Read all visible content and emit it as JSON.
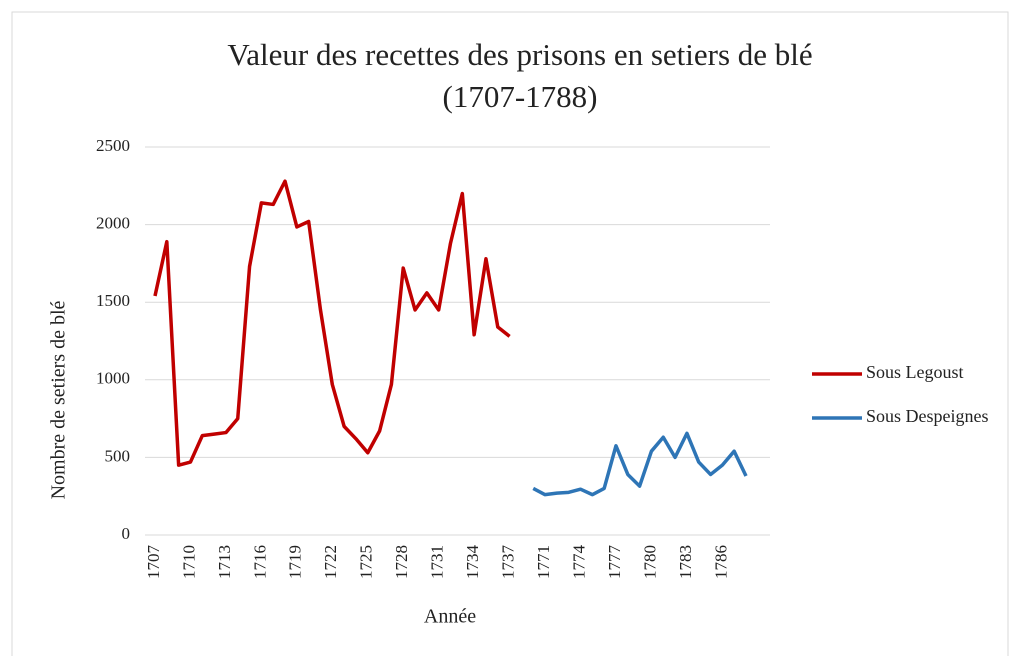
{
  "chart_data": {
    "type": "line",
    "title": [
      "Valeur des recettes des prisons en setiers de blé",
      "(1707-1788)"
    ],
    "x_label": "Année",
    "y_label": "Nombre de setiers de blé",
    "categories": [
      "1707",
      null,
      null,
      "1710",
      null,
      null,
      "1713",
      null,
      null,
      "1716",
      null,
      null,
      "1719",
      null,
      null,
      "1722",
      null,
      null,
      "1725",
      null,
      null,
      "1728",
      null,
      null,
      "1731",
      null,
      null,
      "1734",
      null,
      null,
      "1737",
      null,
      null,
      "1771",
      null,
      null,
      "1774",
      null,
      null,
      "1777",
      null,
      null,
      "1780",
      null,
      null,
      "1783",
      null,
      null,
      "1786",
      null,
      null
    ],
    "series": [
      {
        "name": "Sous Legoust",
        "color": "#c00000",
        "values": [
          1540,
          1890,
          450,
          470,
          640,
          650,
          660,
          750,
          1730,
          2140,
          2130,
          2280,
          1985,
          2020,
          1450,
          970,
          700,
          620,
          530,
          670,
          970,
          1720,
          1450,
          1560,
          1450,
          1880,
          2200,
          1290,
          1780,
          1340,
          1280,
          null,
          null,
          null,
          null,
          null,
          null,
          null,
          null,
          null,
          null,
          null,
          null,
          null,
          null,
          null,
          null,
          null,
          null,
          null,
          null
        ]
      },
      {
        "name": "Sous Despeignes",
        "color": "#2e75b6",
        "values": [
          null,
          null,
          null,
          null,
          null,
          null,
          null,
          null,
          null,
          null,
          null,
          null,
          null,
          null,
          null,
          null,
          null,
          null,
          null,
          null,
          null,
          null,
          null,
          null,
          null,
          null,
          null,
          null,
          null,
          null,
          null,
          null,
          300,
          260,
          270,
          275,
          295,
          260,
          300,
          575,
          390,
          315,
          540,
          630,
          500,
          655,
          470,
          390,
          450,
          540,
          380
        ]
      }
    ],
    "ylim": [
      0,
      2500
    ],
    "yticks": [
      0,
      500,
      1000,
      1500,
      2000,
      2500
    ],
    "grid": true,
    "legend": "right"
  }
}
